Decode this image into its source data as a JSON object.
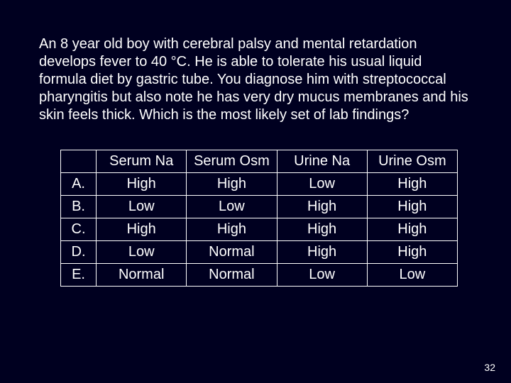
{
  "slide": {
    "background_color": "#000020",
    "text_color": "#ffffff",
    "font_family": "Arial",
    "question_fontsize": 20,
    "table_fontsize": 20,
    "page_number": "32"
  },
  "question": "An 8 year old boy with cerebral palsy and mental retardation develops fever to 40 °C.  He is able to tolerate his usual liquid formula diet by gastric tube.  You diagnose him with streptococcal pharyngitis but also note he has very dry mucus membranes and his skin feels thick.  Which is the most likely set of lab findings?",
  "table": {
    "type": "table",
    "border_color": "#ffffff",
    "columns": [
      "",
      "Serum Na",
      "Serum Osm",
      "Urine Na",
      "Urine Osm"
    ],
    "rows": [
      {
        "label": "A.",
        "cells": [
          "High",
          "High",
          "Low",
          "High"
        ]
      },
      {
        "label": "B.",
        "cells": [
          "Low",
          "Low",
          "High",
          "High"
        ]
      },
      {
        "label": "C.",
        "cells": [
          "High",
          "High",
          "High",
          "High"
        ]
      },
      {
        "label": "D.",
        "cells": [
          "Low",
          "Normal",
          "High",
          "High"
        ]
      },
      {
        "label": "E.",
        "cells": [
          "Normal",
          "Normal",
          "Low",
          "Low"
        ]
      }
    ]
  }
}
